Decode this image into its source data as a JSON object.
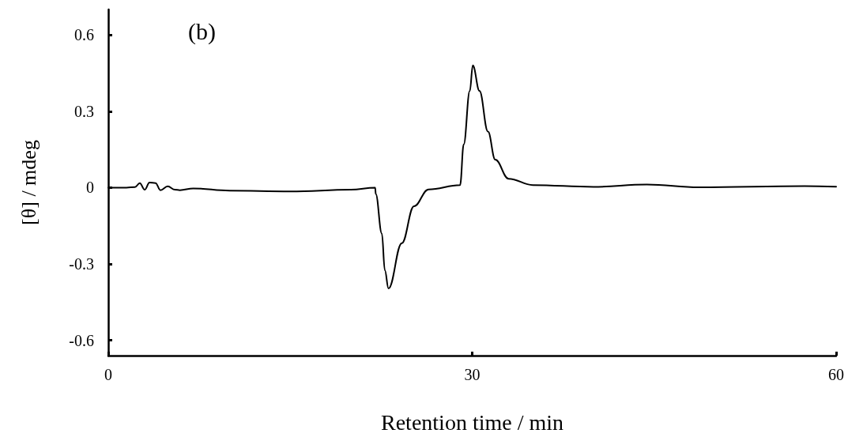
{
  "chart_data": {
    "type": "line",
    "xlabel": "Retention time / min",
    "ylabel": "[θ] / mdeg",
    "annotations": [
      "(b)"
    ],
    "xlim": [
      0,
      60
    ],
    "xticks": [
      0,
      30,
      60
    ],
    "ylim": [
      -0.66,
      0.7
    ],
    "yticks": [
      -0.6,
      -0.3,
      0,
      0.3,
      0.6
    ],
    "grid": false,
    "marker": "none",
    "line_style": "solid",
    "series": [
      {
        "color": "#000000",
        "x": [
          0,
          1.5,
          2.2,
          2.6,
          3.0,
          3.4,
          3.9,
          4.3,
          4.9,
          5.5,
          5.9,
          7,
          10,
          15,
          20,
          22,
          22.05,
          22.55,
          22.8,
          23.1,
          24.2,
          25.2,
          26.4,
          29.0,
          29.3,
          29.8,
          30.05,
          30.6,
          31.3,
          31.9,
          33.0,
          35.0,
          40,
          44.4,
          48.7,
          57.4,
          60
        ],
        "values": [
          0,
          0,
          0.002,
          0.018,
          -0.008,
          0.02,
          0.018,
          -0.01,
          0.005,
          -0.008,
          -0.01,
          -0.003,
          -0.012,
          -0.015,
          -0.008,
          0,
          -0.025,
          -0.18,
          -0.325,
          -0.396,
          -0.218,
          -0.073,
          -0.007,
          0.01,
          0.17,
          0.38,
          0.48,
          0.38,
          0.22,
          0.11,
          0.035,
          0.01,
          0.003,
          0.012,
          0.001,
          0.006,
          0.004
        ]
      }
    ]
  }
}
